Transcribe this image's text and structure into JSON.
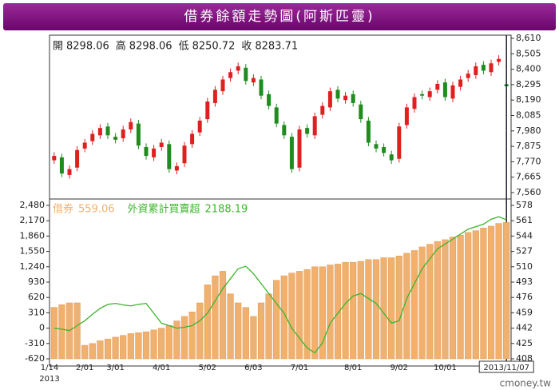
{
  "title": "借券餘額走勢圖(阿斯匹靈)",
  "watermark": "cmoney.tw",
  "chart_data": [
    {
      "type": "candlestick",
      "legend_labels": {
        "open": "開",
        "high": "高",
        "low": "低",
        "close": "收"
      },
      "up_color": "#e02020",
      "down_color": "#1e8c1e",
      "open": [
        7780,
        7800,
        7680,
        7730,
        7860,
        7910,
        7950,
        8010,
        7940,
        7930,
        7990,
        8030,
        7870,
        7800,
        7870,
        7890,
        7710,
        7760,
        7890,
        7970,
        8060,
        8170,
        8250,
        8340,
        8390,
        8410,
        8310,
        8330,
        8230,
        8140,
        8020,
        7940,
        7730,
        8000,
        7950,
        8090,
        8140,
        8260,
        8190,
        8230,
        8160,
        8050,
        7890,
        7870,
        7820,
        7790,
        8020,
        8130,
        8230,
        8210,
        8260,
        8310,
        8200,
        8280,
        8340,
        8360,
        8430,
        8380,
        8450,
        8298.06
      ],
      "high": [
        7835,
        7825,
        7745,
        7875,
        7925,
        7985,
        8025,
        8035,
        7965,
        8015,
        8065,
        8055,
        7895,
        7885,
        7925,
        7915,
        7765,
        7905,
        7985,
        8075,
        8205,
        8285,
        8355,
        8405,
        8445,
        8435,
        8365,
        8355,
        8255,
        8165,
        8045,
        7965,
        8015,
        8025,
        8105,
        8175,
        8275,
        8285,
        8245,
        8255,
        8185,
        8075,
        7915,
        7895,
        7845,
        8035,
        8165,
        8235,
        8255,
        8275,
        8325,
        8335,
        8315,
        8355,
        8395,
        8445,
        8455,
        8465,
        8495,
        8298.06
      ],
      "low": [
        7755,
        7665,
        7655,
        7705,
        7835,
        7885,
        7925,
        7925,
        7895,
        7905,
        7965,
        7855,
        7785,
        7775,
        7845,
        7695,
        7685,
        7735,
        7865,
        7945,
        8035,
        8145,
        8225,
        8315,
        8365,
        8295,
        8285,
        8195,
        8125,
        8005,
        7925,
        7695,
        7705,
        7935,
        7925,
        8065,
        8115,
        8175,
        8165,
        8145,
        8035,
        7875,
        7835,
        7805,
        7755,
        7765,
        7995,
        8105,
        8195,
        8185,
        8235,
        8185,
        8175,
        8255,
        8315,
        8335,
        8365,
        8355,
        8425,
        8250.72
      ],
      "close": [
        7810,
        7690,
        7720,
        7850,
        7900,
        7960,
        8000,
        7950,
        7920,
        7990,
        8040,
        7880,
        7810,
        7860,
        7900,
        7720,
        7740,
        7880,
        7960,
        8050,
        8180,
        8260,
        8330,
        8380,
        8420,
        8320,
        8340,
        8220,
        8150,
        8030,
        7950,
        7720,
        7990,
        7960,
        8080,
        8150,
        8250,
        8200,
        8220,
        8170,
        8060,
        7900,
        7860,
        7830,
        7780,
        8010,
        8140,
        8210,
        8220,
        8250,
        8300,
        8210,
        8290,
        8330,
        8370,
        8420,
        8390,
        8440,
        8470,
        8283.71
      ],
      "ylim": [
        7560,
        8610
      ],
      "yticks": [
        {
          "value": 8610,
          "label": "8,610"
        },
        {
          "value": 8505,
          "label": "8,505"
        },
        {
          "value": 8400,
          "label": "8,400"
        },
        {
          "value": 8295,
          "label": "8,295"
        },
        {
          "value": 8190,
          "label": "8,190"
        },
        {
          "value": 8085,
          "label": "8,085"
        },
        {
          "value": 7980,
          "label": "7,980"
        },
        {
          "value": 7875,
          "label": "7,875"
        },
        {
          "value": 7770,
          "label": "7,770"
        },
        {
          "value": 7665,
          "label": "7,665"
        },
        {
          "value": 7560,
          "label": "7,560"
        }
      ]
    },
    {
      "type": "combo",
      "categories": [
        "1/14",
        null,
        null,
        null,
        "2/01",
        null,
        null,
        null,
        "3/01",
        null,
        null,
        null,
        null,
        null,
        "4/01",
        null,
        null,
        null,
        null,
        null,
        "5/02",
        null,
        null,
        null,
        null,
        null,
        "6/03",
        null,
        null,
        null,
        null,
        null,
        "7/01",
        null,
        null,
        null,
        null,
        null,
        null,
        "8/01",
        null,
        null,
        null,
        null,
        null,
        "9/02",
        null,
        null,
        null,
        null,
        null,
        "10/01",
        null,
        null,
        null,
        null,
        null,
        null,
        null,
        "2013/11/07"
      ],
      "x_year_label": "2013",
      "series": [
        {
          "name": "借券",
          "color": "#f0b070",
          "axis": "y2",
          "type": "bar",
          "values": [
            465,
            468,
            470,
            470,
            423,
            425,
            428,
            430,
            432,
            434,
            436,
            437,
            438,
            440,
            442,
            445,
            450,
            455,
            460,
            470,
            490,
            500,
            505,
            480,
            470,
            465,
            455,
            470,
            480,
            495,
            500,
            503,
            505,
            507,
            510,
            510,
            512,
            513,
            515,
            515,
            516,
            518,
            518,
            520,
            520,
            522,
            525,
            528,
            532,
            535,
            538,
            540,
            543,
            545,
            548,
            550,
            553,
            555,
            558,
            559.06
          ]
        },
        {
          "name": "外資累計買賣超",
          "color": "#3cb52c",
          "type": "line",
          "values": [
            0,
            -20,
            -50,
            50,
            150,
            280,
            400,
            480,
            500,
            470,
            450,
            480,
            500,
            300,
            100,
            50,
            0,
            20,
            50,
            150,
            300,
            550,
            800,
            1000,
            1200,
            1250,
            1100,
            900,
            700,
            500,
            300,
            0,
            -200,
            -400,
            -500,
            -300,
            100,
            300,
            500,
            650,
            700,
            600,
            500,
            300,
            100,
            150,
            600,
            900,
            1200,
            1400,
            1600,
            1700,
            1800,
            1900,
            2000,
            2050,
            2100,
            2200,
            2250,
            2188.19
          ]
        }
      ],
      "ylim": [
        -620,
        2480
      ],
      "yticks": [
        {
          "value": 2480,
          "label": "2,480"
        },
        {
          "value": 2170,
          "label": "2,170"
        },
        {
          "value": 1860,
          "label": "1,860"
        },
        {
          "value": 1550,
          "label": "1,550"
        },
        {
          "value": 1240,
          "label": "1,240"
        },
        930,
        620,
        310,
        0,
        -310,
        -620
      ],
      "y2lim": [
        408,
        578
      ],
      "y2ticks": [
        578,
        561,
        544,
        527,
        510,
        493,
        476,
        459,
        442,
        425,
        408
      ]
    }
  ]
}
